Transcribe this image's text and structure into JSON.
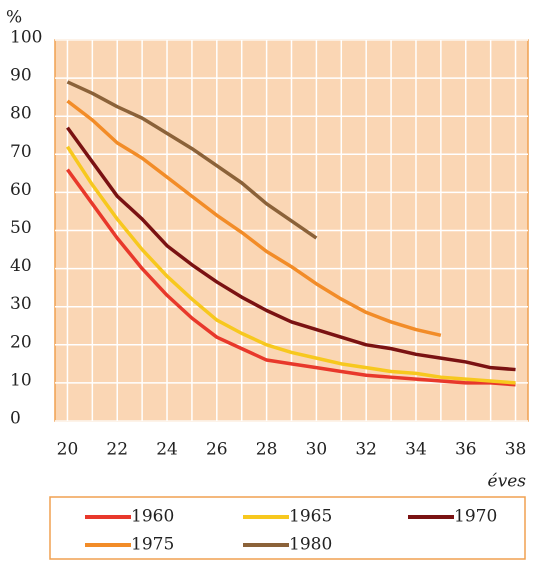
{
  "chart_data": {
    "type": "line",
    "y_label": "%",
    "x_label": "éves",
    "x": [
      20,
      21,
      22,
      23,
      24,
      25,
      26,
      27,
      28,
      29,
      30,
      31,
      32,
      33,
      34,
      35,
      36,
      37,
      38
    ],
    "xlim": [
      19.5,
      38.5
    ],
    "xticks": [
      20,
      22,
      24,
      26,
      28,
      30,
      32,
      34,
      36,
      38
    ],
    "ylim": [
      0,
      100
    ],
    "yticks": [
      0,
      10,
      20,
      30,
      40,
      50,
      60,
      70,
      80,
      90,
      100
    ],
    "grid": true,
    "legend": "bottom",
    "series": [
      {
        "name": "1960",
        "color": "#e8382b",
        "values": [
          66,
          57,
          48,
          40,
          33,
          27,
          22,
          19,
          16,
          15,
          14,
          13,
          12,
          11.5,
          11,
          10.5,
          10,
          10,
          9.5
        ]
      },
      {
        "name": "1965",
        "color": "#f7c81e",
        "values": [
          72,
          62,
          53,
          45,
          38,
          32,
          26.5,
          23,
          20,
          18,
          16.5,
          15,
          14,
          13,
          12.5,
          11.5,
          11,
          10.5,
          10
        ]
      },
      {
        "name": "1970",
        "color": "#7a1212",
        "values": [
          77,
          68,
          59,
          53,
          46,
          41,
          36.5,
          32.5,
          29,
          26,
          24,
          22,
          20,
          19,
          17.5,
          16.5,
          15.5,
          14,
          13.5
        ]
      },
      {
        "name": "1975",
        "color": "#f28c28",
        "values": [
          84,
          79,
          73,
          69,
          64,
          59,
          54,
          49.5,
          44.5,
          40.5,
          36,
          32,
          28.5,
          26,
          24,
          22.5,
          null,
          null,
          null
        ]
      },
      {
        "name": "1980",
        "color": "#8b6239",
        "values": [
          89,
          86,
          82.5,
          79.5,
          75.5,
          71.5,
          67,
          62.5,
          57,
          52.5,
          48,
          null,
          null,
          null,
          null,
          null,
          null,
          null,
          null
        ]
      }
    ]
  }
}
